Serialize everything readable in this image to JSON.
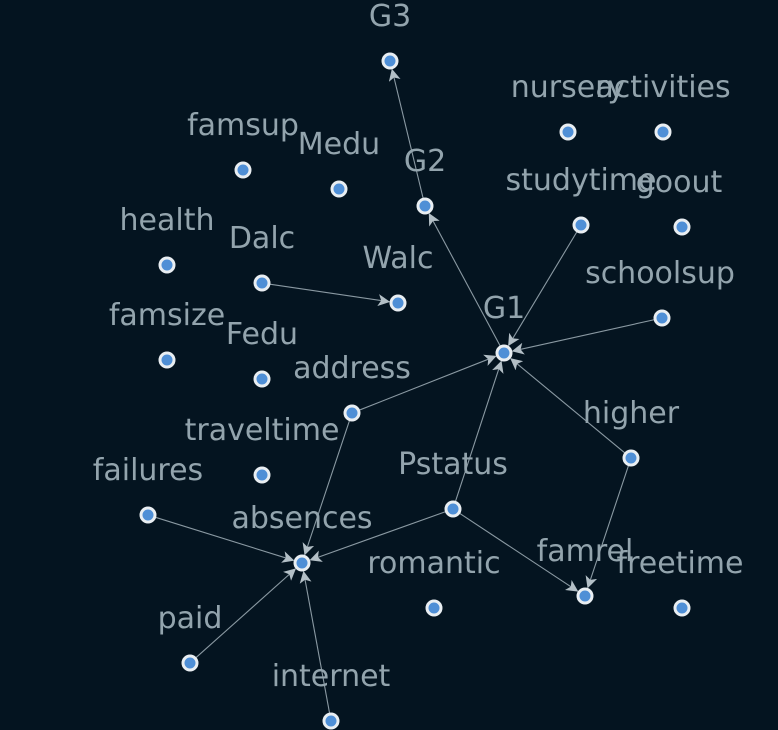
{
  "nodes": [
    {
      "id": "G3",
      "label": "G3"
    },
    {
      "id": "nursery",
      "label": "nursery"
    },
    {
      "id": "activities",
      "label": "activities"
    },
    {
      "id": "famsup",
      "label": "famsup"
    },
    {
      "id": "Medu",
      "label": "Medu"
    },
    {
      "id": "G2",
      "label": "G2"
    },
    {
      "id": "studytime",
      "label": "studytime"
    },
    {
      "id": "goout",
      "label": "goout"
    },
    {
      "id": "health",
      "label": "health"
    },
    {
      "id": "Dalc",
      "label": "Dalc"
    },
    {
      "id": "Walc",
      "label": "Walc"
    },
    {
      "id": "schoolsup",
      "label": "schoolsup"
    },
    {
      "id": "famsize",
      "label": "famsize"
    },
    {
      "id": "Fedu",
      "label": "Fedu"
    },
    {
      "id": "G1",
      "label": "G1"
    },
    {
      "id": "address",
      "label": "address"
    },
    {
      "id": "higher",
      "label": "higher"
    },
    {
      "id": "traveltime",
      "label": "traveltime"
    },
    {
      "id": "failures",
      "label": "failures"
    },
    {
      "id": "Pstatus",
      "label": "Pstatus"
    },
    {
      "id": "absences",
      "label": "absences"
    },
    {
      "id": "famrel",
      "label": "famrel"
    },
    {
      "id": "freetime",
      "label": "freetime"
    },
    {
      "id": "romantic",
      "label": "romantic"
    },
    {
      "id": "paid",
      "label": "paid"
    },
    {
      "id": "internet",
      "label": "internet"
    }
  ],
  "edges": [
    {
      "from": "G2",
      "to": "G3"
    },
    {
      "from": "G1",
      "to": "G2"
    },
    {
      "from": "studytime",
      "to": "G1"
    },
    {
      "from": "schoolsup",
      "to": "G1"
    },
    {
      "from": "higher",
      "to": "G1"
    },
    {
      "from": "address",
      "to": "G1"
    },
    {
      "from": "Pstatus",
      "to": "G1"
    },
    {
      "from": "Dalc",
      "to": "Walc"
    },
    {
      "from": "address",
      "to": "absences"
    },
    {
      "from": "failures",
      "to": "absences"
    },
    {
      "from": "Pstatus",
      "to": "absences"
    },
    {
      "from": "paid",
      "to": "absences"
    },
    {
      "from": "internet",
      "to": "absences"
    },
    {
      "from": "Pstatus",
      "to": "famrel"
    },
    {
      "from": "higher",
      "to": "famrel"
    }
  ],
  "colors": {
    "background": "#041420",
    "node_fill": "#4f8fd6",
    "node_stroke": "#e9eef2",
    "edge": "#8a99a2",
    "label": "#93a4ad"
  }
}
